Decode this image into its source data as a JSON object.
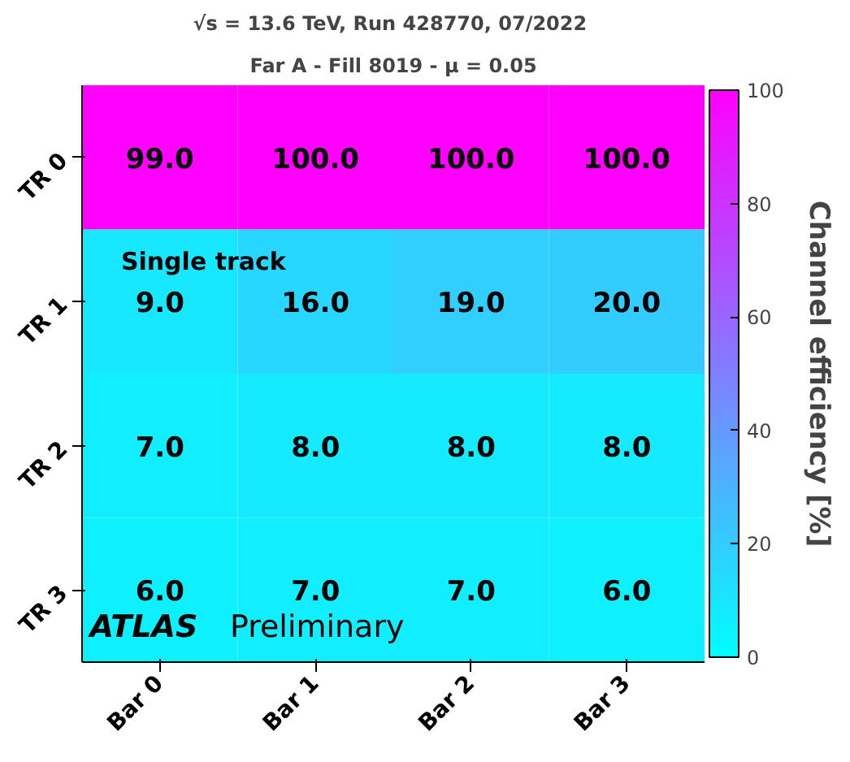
{
  "chart_data": {
    "type": "heatmap",
    "title": "√s = 13.6 TeV, Run 428770,  07/2022",
    "subtitle": "Far A - Fill 8019 - μ = 0.05",
    "categories": [
      "Bar 0",
      "Bar 1",
      "Bar 2",
      "Bar 3"
    ],
    "y_categories": [
      "TR 0",
      "TR 1",
      "TR 2",
      "TR 3"
    ],
    "cells": [
      [
        99,
        100,
        100,
        100
      ],
      [
        9,
        16,
        19,
        20
      ],
      [
        7,
        8,
        8,
        8
      ],
      [
        6,
        7,
        7,
        6
      ]
    ],
    "cell_labels": [
      [
        "99.0",
        "100.0",
        "100.0",
        "100.0"
      ],
      [
        "9.0",
        "16.0",
        "19.0",
        "20.0"
      ],
      [
        "7.0",
        "8.0",
        "8.0",
        "8.0"
      ],
      [
        "6.0",
        "7.0",
        "7.0",
        "6.0"
      ]
    ],
    "clim": [
      0,
      100
    ],
    "cticks": [
      0,
      20,
      40,
      60,
      80,
      100
    ],
    "clabel": "Channel efficiency [%]",
    "annotations": [
      "Single track",
      "ATLAS Preliminary"
    ]
  }
}
